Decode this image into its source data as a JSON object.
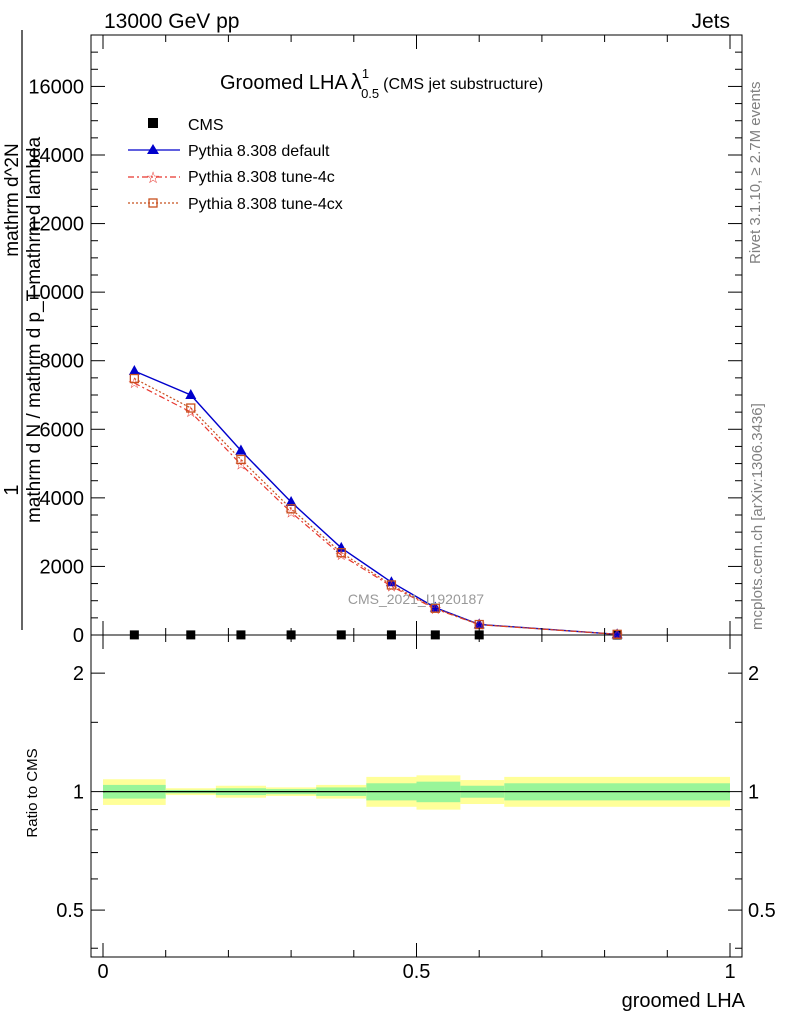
{
  "header": {
    "left": "13000 GeV pp",
    "right": "Jets"
  },
  "title": {
    "main": "Groomed LHA",
    "lambda": "λ",
    "sup": "1",
    "sub": "0.5",
    "suffix": "(CMS jet substructure)"
  },
  "side_texts": {
    "rivet": "Rivet 3.1.10, ≥ 2.7M events",
    "mcplots": "mcplots.cern.ch [arXiv:1306.3436]"
  },
  "watermark": "CMS_2021_I1920187",
  "ylabel_main": {
    "one": "1",
    "numerator": "mathrm d^2N",
    "denominator": "mathrm d N / mathrm d p_T mathrm d lambda",
    "left_num": "mathrm d N",
    "left_den": "mathrm d p_T mathrm d lambda"
  },
  "ylabel_ratio": "Ratio to CMS",
  "xlabel": "groomed LHA",
  "colors": {
    "cms": "#000000",
    "default": "#0000cc",
    "tune4c": "#e8362e",
    "tune4cx": "#c8501e",
    "band_inner": "#99f599",
    "band_outer": "#ffff99"
  },
  "chart_data": [
    {
      "type": "line",
      "panel": "main",
      "xlim": [
        0,
        1
      ],
      "ylim": [
        0,
        17500
      ],
      "y_ticks": [
        0,
        2000,
        4000,
        6000,
        8000,
        10000,
        12000,
        14000,
        16000
      ],
      "y_tick_labels": [
        "0",
        "2000",
        "4000",
        "6000",
        "8000",
        "10000",
        "12000",
        "14000",
        "16000"
      ],
      "legend_position": "top-left",
      "series": [
        {
          "name": "CMS",
          "marker": "square",
          "x": [
            0.05,
            0.14,
            0.22,
            0.3,
            0.38,
            0.46,
            0.53,
            0.6,
            0.82
          ],
          "y": [
            3,
            3,
            3,
            3,
            3,
            3,
            3,
            3,
            0
          ]
        },
        {
          "name": "Pythia 8.308 default",
          "marker": "triangle",
          "x": [
            0.05,
            0.14,
            0.22,
            0.3,
            0.38,
            0.46,
            0.53,
            0.6,
            0.82
          ],
          "y": [
            7700,
            7000,
            5380,
            3880,
            2540,
            1540,
            800,
            310,
            20
          ]
        },
        {
          "name": "Pythia 8.308 tune-4c",
          "marker": "star",
          "x": [
            0.05,
            0.14,
            0.22,
            0.3,
            0.38,
            0.46,
            0.53,
            0.6,
            0.82
          ],
          "y": [
            7350,
            6500,
            4980,
            3580,
            2330,
            1420,
            760,
            300,
            20
          ]
        },
        {
          "name": "Pythia 8.308 tune-4cx",
          "marker": "open-square",
          "x": [
            0.05,
            0.14,
            0.22,
            0.3,
            0.38,
            0.46,
            0.53,
            0.6,
            0.82
          ],
          "y": [
            7480,
            6620,
            5120,
            3680,
            2400,
            1460,
            780,
            305,
            20
          ]
        }
      ]
    },
    {
      "type": "area",
      "panel": "ratio",
      "xlim": [
        0,
        1
      ],
      "ylim": [
        0.38,
        2.5
      ],
      "log_y": true,
      "y_ticks": [
        0.5,
        1,
        2
      ],
      "y_tick_labels": [
        "0.5",
        "1",
        "2"
      ],
      "x_ticks": [
        0,
        0.5,
        1
      ],
      "x_tick_labels": [
        "0",
        "0.5",
        "1"
      ],
      "bins": [
        0,
        0.1,
        0.18,
        0.26,
        0.34,
        0.42,
        0.5,
        0.57,
        0.64,
        1.0
      ],
      "band_inner_lo": [
        0.96,
        0.99,
        0.98,
        0.985,
        0.975,
        0.95,
        0.94,
        0.965,
        0.95
      ],
      "band_inner_hi": [
        1.04,
        1.01,
        1.02,
        1.015,
        1.025,
        1.05,
        1.06,
        1.035,
        1.05
      ],
      "band_outer_lo": [
        0.925,
        0.98,
        0.965,
        0.975,
        0.96,
        0.915,
        0.9,
        0.93,
        0.915
      ],
      "band_outer_hi": [
        1.075,
        1.02,
        1.035,
        1.025,
        1.04,
        1.09,
        1.1,
        1.07,
        1.09
      ],
      "reference": 1
    }
  ]
}
